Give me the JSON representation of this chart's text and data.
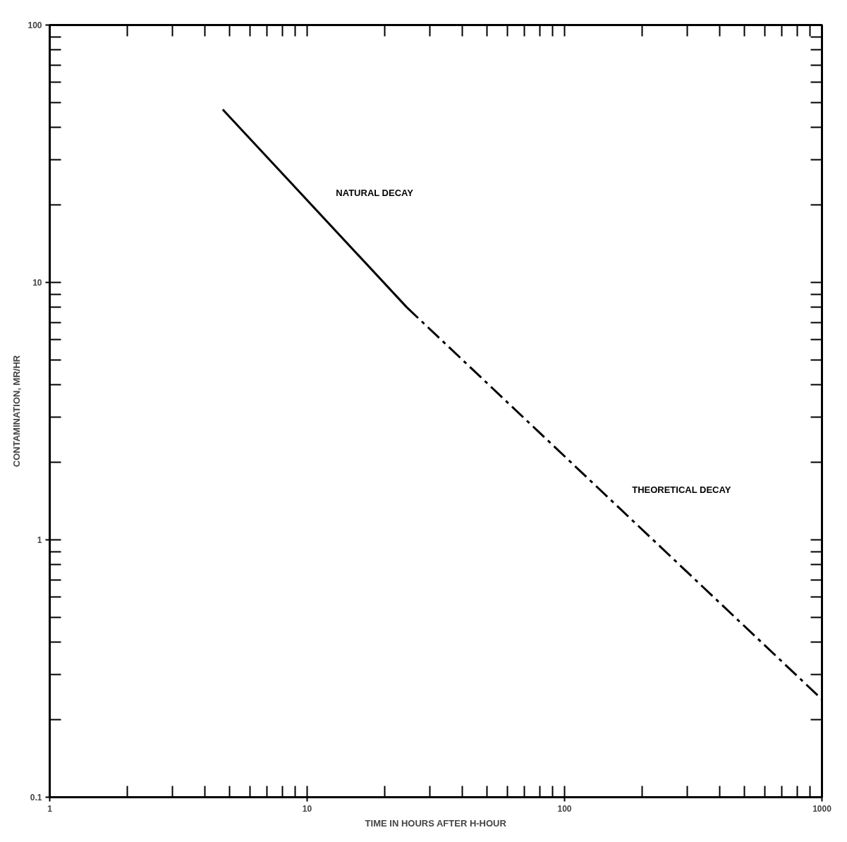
{
  "chart_data": {
    "type": "line",
    "xlabel": "TIME IN HOURS AFTER H-HOUR",
    "ylabel": "CONTAMINATION, MR/HR",
    "log": "xy",
    "grid": false,
    "marker": "none",
    "xlim": [
      1,
      1000
    ],
    "ylim": [
      0.1,
      100
    ],
    "xticks": [
      1,
      10,
      100,
      1000
    ],
    "yticks": [
      {
        "value": 0.1,
        "label": "0.1"
      },
      1,
      10,
      100
    ],
    "series": [
      {
        "name": "NATURAL DECAY",
        "color": "#000000",
        "line_style": "solid",
        "x": [
          4.7,
          24.4
        ],
        "values": [
          47,
          8
        ]
      },
      {
        "name": "THEORETICAL DECAY",
        "color": "#000000",
        "line_style": "dashed",
        "x": [
          24.4,
          1000
        ],
        "values": [
          8,
          0.24
        ]
      }
    ]
  }
}
